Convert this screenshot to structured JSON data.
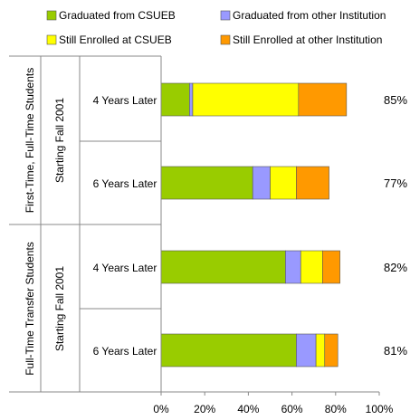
{
  "chart_data": {
    "type": "bar",
    "orientation": "horizontal",
    "stacked": true,
    "title": "",
    "xlabel": "",
    "ylabel": "",
    "xlim": [
      0,
      100
    ],
    "x_ticks": [
      "0%",
      "20%",
      "40%",
      "60%",
      "80%",
      "100%"
    ],
    "legend_position": "top",
    "grid": false,
    "legend": [
      {
        "name": "Graduated from CSUEB",
        "color": "#99cc00"
      },
      {
        "name": "Graduated from other Institution",
        "color": "#9999ff"
      },
      {
        "name": "Still Enrolled at CSUEB",
        "color": "#ffff00"
      },
      {
        "name": "Still Enrolled at other Institution",
        "color": "#ff9900"
      }
    ],
    "groups": [
      {
        "label": "First-Time, Full-Time Students",
        "sublabel": "Starting Fall 2001"
      },
      {
        "label": "Full-Time Transfer Students",
        "sublabel": "Starting Fall 2001"
      }
    ],
    "categories": [
      {
        "label": "4 Years Later",
        "group": 0,
        "total_label": "85%",
        "values": [
          13,
          1.5,
          48.5,
          22
        ]
      },
      {
        "label": "6 Years Later",
        "group": 0,
        "total_label": "77%",
        "values": [
          42,
          8,
          12,
          15
        ]
      },
      {
        "label": "4 Years Later",
        "group": 1,
        "total_label": "82%",
        "values": [
          57,
          7,
          10,
          8
        ]
      },
      {
        "label": "6 Years Later",
        "group": 1,
        "total_label": "81%",
        "values": [
          62,
          9,
          4,
          6
        ]
      }
    ]
  }
}
